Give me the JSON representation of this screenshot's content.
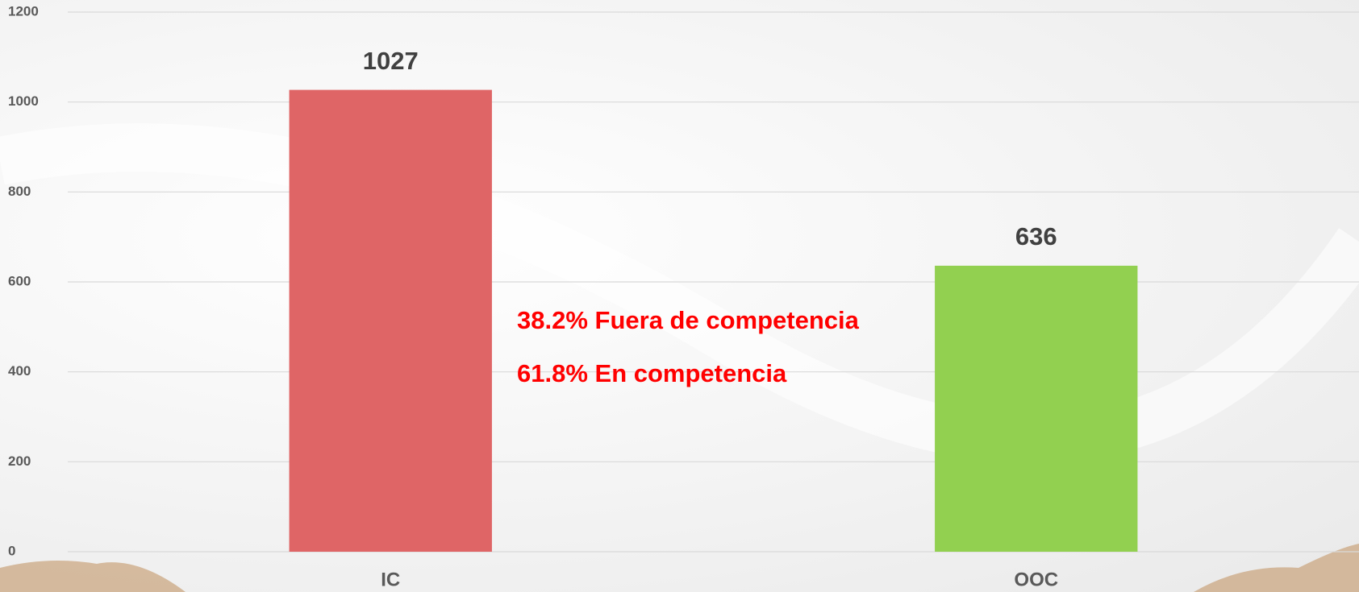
{
  "chart_data": {
    "type": "bar",
    "categories": [
      "IC",
      "OOC"
    ],
    "values": [
      1027,
      636
    ],
    "colors": [
      "#df6566",
      "#92d050"
    ],
    "ylim": [
      0,
      1200
    ],
    "yticks": [
      0,
      200,
      400,
      600,
      800,
      1000,
      1200
    ],
    "grid": true,
    "annotations": [
      "38.2% Fuera de competencia",
      "61.8% En competencia"
    ]
  }
}
